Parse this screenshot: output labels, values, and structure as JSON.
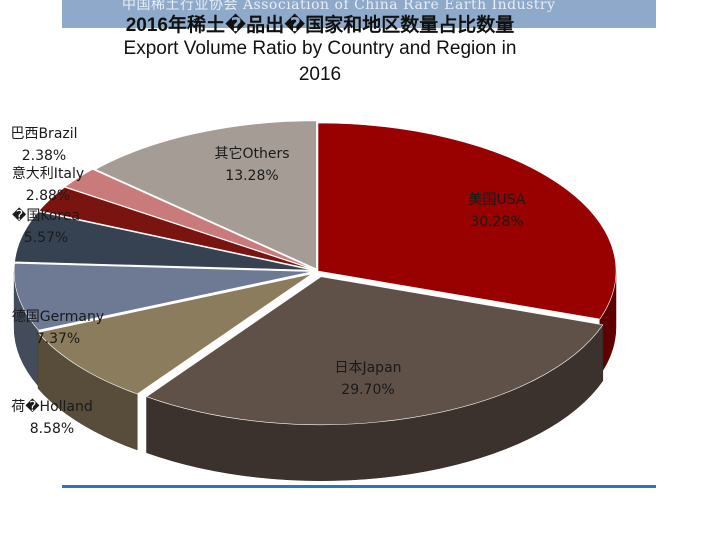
{
  "header": {
    "banner_text": "中国稀土行业协会 Association of China Rare Earth Industry",
    "title_zh": "2016年稀土�品出�国家和地区数量占比数量",
    "title_en_line1": "Export Volume Ratio by Country and Region in",
    "title_en_line2": "2016"
  },
  "colors": {
    "banner": "#8ea9c9",
    "baseline": "#2e75b6"
  },
  "chart_data": {
    "type": "pie",
    "style": "3d-exploded",
    "slices": [
      {
        "name": "美国USA",
        "value": 30.28,
        "label": "30.28%",
        "color": "#990000"
      },
      {
        "name": "日本Japan",
        "value": 29.7,
        "label": "29.70%",
        "color": "#5f5148"
      },
      {
        "name": "荷�Holland",
        "value": 8.58,
        "label": "8.58%",
        "color": "#8c7c5e"
      },
      {
        "name": "德国Germany",
        "value": 7.37,
        "label": "7.37%",
        "color": "#6e7a94"
      },
      {
        "name": "�国Korea",
        "value": 5.57,
        "label": "5.57%",
        "color": "#364251"
      },
      {
        "name": "意大利Italy",
        "value": 2.88,
        "label": "2.88%",
        "color": "#7a1410"
      },
      {
        "name": "巴西Brazil",
        "value": 2.38,
        "label": "2.38%",
        "color": "#c97a7a"
      },
      {
        "name": "其它Others",
        "value": 13.28,
        "label": "13.28%",
        "color": "#a59c95"
      }
    ]
  }
}
